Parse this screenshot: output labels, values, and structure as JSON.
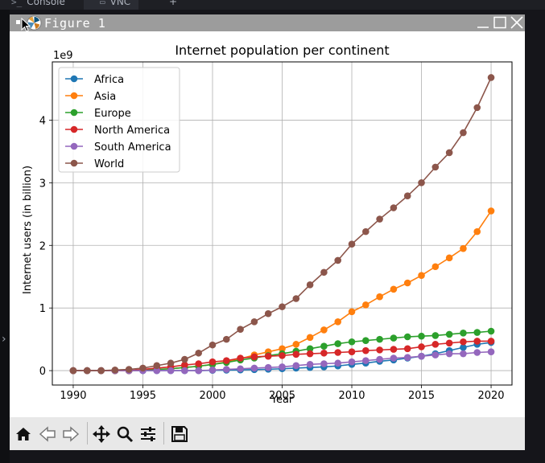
{
  "tabs": [
    {
      "label": "Console",
      "icon": ">_"
    },
    {
      "label": "VNC",
      "icon": "monitor-icon"
    },
    {
      "label": "+",
      "icon": "plus-icon"
    }
  ],
  "window": {
    "title": "Figure 1"
  },
  "chart_data": {
    "type": "line",
    "title": "Internet population per continent",
    "xlabel": "Year",
    "ylabel": "Internet users (in billion)",
    "offset_label": "1e9",
    "x": [
      1990,
      1991,
      1992,
      1993,
      1994,
      1995,
      1996,
      1997,
      1998,
      1999,
      2000,
      2001,
      2002,
      2003,
      2004,
      2005,
      2006,
      2007,
      2008,
      2009,
      2010,
      2011,
      2012,
      2013,
      2014,
      2015,
      2016,
      2017,
      2018,
      2019,
      2020
    ],
    "xlim": [
      1988.5,
      2021.5
    ],
    "ylim": [
      -0.23,
      4.93
    ],
    "xticks": [
      1990,
      1995,
      2000,
      2005,
      2010,
      2015,
      2020
    ],
    "yticks": [
      0,
      1,
      2,
      3,
      4
    ],
    "grid": true,
    "legend_position": "top-left",
    "series": [
      {
        "name": "Africa",
        "color": "#1f77b4",
        "values": [
          0,
          0,
          0,
          0,
          0,
          0,
          0,
          0,
          0,
          0,
          0.005,
          0.008,
          0.012,
          0.016,
          0.022,
          0.03,
          0.04,
          0.05,
          0.06,
          0.075,
          0.1,
          0.12,
          0.15,
          0.17,
          0.2,
          0.23,
          0.27,
          0.32,
          0.37,
          0.42,
          0.45
        ]
      },
      {
        "name": "Asia",
        "color": "#ff7f0e",
        "values": [
          0,
          0,
          0,
          0,
          0,
          0.01,
          0.02,
          0.03,
          0.05,
          0.07,
          0.1,
          0.14,
          0.19,
          0.25,
          0.3,
          0.35,
          0.42,
          0.53,
          0.65,
          0.78,
          0.94,
          1.05,
          1.18,
          1.3,
          1.4,
          1.52,
          1.66,
          1.8,
          1.95,
          2.22,
          2.55
        ]
      },
      {
        "name": "Europe",
        "color": "#2ca02c",
        "values": [
          0,
          0,
          0,
          0,
          0,
          0.005,
          0.02,
          0.03,
          0.05,
          0.07,
          0.1,
          0.13,
          0.17,
          0.2,
          0.24,
          0.27,
          0.31,
          0.35,
          0.39,
          0.43,
          0.46,
          0.48,
          0.5,
          0.52,
          0.54,
          0.55,
          0.56,
          0.58,
          0.6,
          0.61,
          0.63
        ]
      },
      {
        "name": "North America",
        "color": "#d62728",
        "values": [
          0,
          0,
          0,
          0,
          0,
          0.02,
          0.04,
          0.06,
          0.09,
          0.11,
          0.14,
          0.16,
          0.2,
          0.22,
          0.23,
          0.24,
          0.26,
          0.27,
          0.28,
          0.29,
          0.3,
          0.32,
          0.33,
          0.34,
          0.35,
          0.38,
          0.42,
          0.44,
          0.46,
          0.47,
          0.47
        ]
      },
      {
        "name": "South America",
        "color": "#9467bd",
        "values": [
          0,
          0,
          0,
          0,
          0,
          0,
          0,
          0,
          0,
          0,
          0.01,
          0.02,
          0.03,
          0.04,
          0.05,
          0.06,
          0.08,
          0.1,
          0.11,
          0.12,
          0.14,
          0.16,
          0.18,
          0.2,
          0.21,
          0.23,
          0.25,
          0.27,
          0.27,
          0.29,
          0.3
        ]
      },
      {
        "name": "World",
        "color": "#8c564b",
        "values": [
          0,
          0,
          0,
          0.01,
          0.02,
          0.04,
          0.08,
          0.12,
          0.18,
          0.28,
          0.41,
          0.5,
          0.66,
          0.78,
          0.91,
          1.02,
          1.15,
          1.37,
          1.57,
          1.76,
          2.02,
          2.22,
          2.42,
          2.6,
          2.79,
          3.0,
          3.25,
          3.48,
          3.8,
          4.2,
          4.68
        ]
      }
    ]
  }
}
